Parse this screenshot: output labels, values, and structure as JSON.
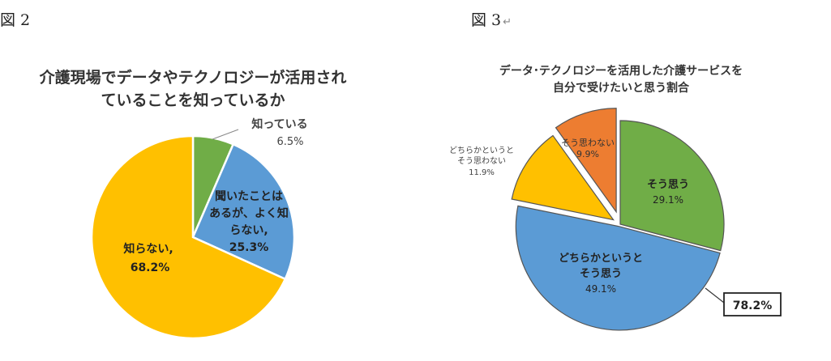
{
  "figure2": {
    "label": "図 2",
    "title_line1": "介護現場でデータやテクノロジーが活用され",
    "title_line2": "ていることを知っているか"
  },
  "figure3": {
    "label": "図 3",
    "return_mark": "↵",
    "title_line1": "データ･テクノロジーを活用した介護サービスを",
    "title_line2": "自分で受けたいと思う割合",
    "callout": "78.2%"
  },
  "chart_data": [
    {
      "type": "pie",
      "title": "介護現場でデータやテクノロジーが活用されていることを知っているか",
      "slices": [
        {
          "label": "知っている",
          "value": 6.5,
          "value_text": "6.5%",
          "color": "#70ad47"
        },
        {
          "label": "聞いたことはあるが、よく知らない,",
          "value": 25.3,
          "value_text": "25.3%",
          "color": "#5b9bd5"
        },
        {
          "label": "知らない,",
          "value": 68.2,
          "value_text": "68.2%",
          "color": "#ffc000"
        }
      ]
    },
    {
      "type": "pie",
      "title": "データ･テクノロジーを活用した介護サービスを自分で受けたいと思う割合",
      "slices": [
        {
          "label": "そう思う",
          "value": 29.1,
          "value_text": "29.1%",
          "color": "#70ad47"
        },
        {
          "label": "どちらかというとそう思う",
          "value": 49.1,
          "value_text": "49.1%",
          "color": "#5b9bd5"
        },
        {
          "label": "どちらかというとそう思わない",
          "value": 11.9,
          "value_text": "11.9%",
          "color": "#ffc000"
        },
        {
          "label": "そう思わない",
          "value": 9.9,
          "value_text": "9.9%",
          "color": "#ed7d31"
        }
      ],
      "annotation": "78.2%"
    }
  ]
}
